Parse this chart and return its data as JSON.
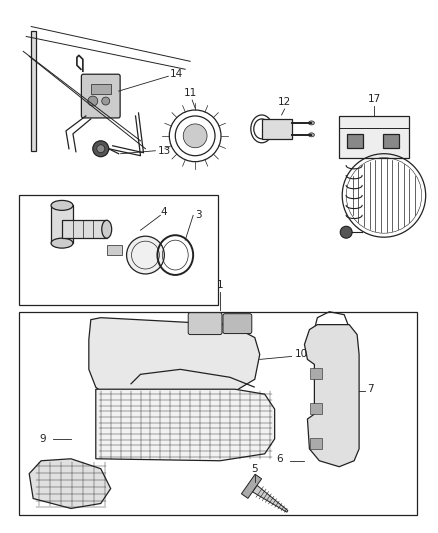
{
  "background_color": "#ffffff",
  "fig_width": 4.38,
  "fig_height": 5.33,
  "dpi": 100
}
